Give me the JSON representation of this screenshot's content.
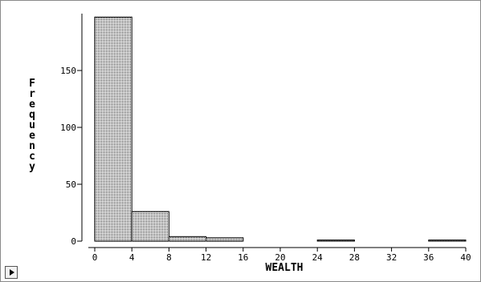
{
  "chart_data": {
    "type": "bar",
    "xlabel": "WEALTH",
    "ylabel": "Frequency",
    "bin_edges": [
      0,
      4,
      8,
      12,
      16,
      20,
      24,
      28,
      32,
      36,
      40
    ],
    "values": [
      197,
      26,
      4,
      3,
      0,
      0,
      1,
      0,
      0,
      1
    ],
    "x_ticks": [
      "0",
      "4",
      "8",
      "12",
      "16",
      "20",
      "24",
      "28",
      "32",
      "36",
      "40"
    ],
    "y_ticks": [
      "0",
      "50",
      "100",
      "150"
    ],
    "xlim": [
      0,
      40
    ],
    "ylim": [
      0,
      200
    ],
    "grid": false
  }
}
